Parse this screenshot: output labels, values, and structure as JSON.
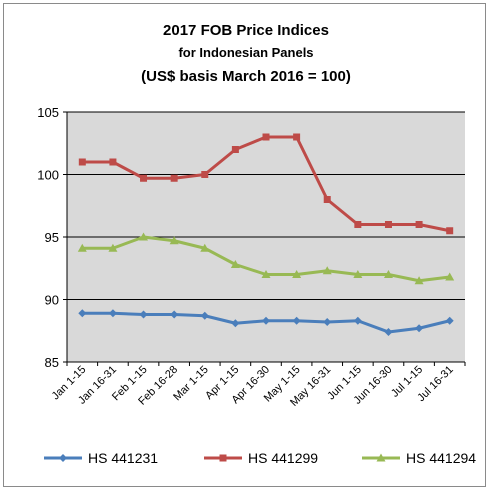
{
  "chart_data": {
    "type": "line",
    "title_lines": [
      "2017 FOB Price Indices",
      "for Indonesian Panels",
      "(US$ basis March 2016 = 100)"
    ],
    "xlabel": "",
    "ylabel": "",
    "ylim": [
      85,
      105
    ],
    "yticks": [
      85,
      90,
      95,
      100,
      105
    ],
    "grid": true,
    "legend": "bottom",
    "categories": [
      "Jan 1-15",
      "Jan 16-31",
      "Feb 1-15",
      "Feb 16-28",
      "Mar 1-15",
      "Apr 1-15",
      "Apr 16-30",
      "May 1-15",
      "May 16-31",
      "Jun 1-15",
      "Jun 16-30",
      "Jul 1-15",
      "Jul 16-31"
    ],
    "series": [
      {
        "name": "HS 441231",
        "color": "#4a7ebb",
        "marker": "diamond",
        "values": [
          88.9,
          88.9,
          88.8,
          88.8,
          88.7,
          88.1,
          88.3,
          88.3,
          88.2,
          88.3,
          87.4,
          87.7,
          88.3
        ]
      },
      {
        "name": "HS 441299",
        "color": "#be4b48",
        "marker": "square",
        "values": [
          101.0,
          101.0,
          99.7,
          99.7,
          100.0,
          102.0,
          103.0,
          103.0,
          98.0,
          96.0,
          96.0,
          96.0,
          95.5
        ]
      },
      {
        "name": "HS 441294",
        "color": "#98b954",
        "marker": "triangle",
        "values": [
          94.1,
          94.1,
          95.0,
          94.7,
          94.1,
          92.8,
          92.0,
          92.0,
          92.3,
          92.0,
          92.0,
          91.5,
          91.8
        ]
      }
    ],
    "plot_background": "#d9d9d9"
  }
}
